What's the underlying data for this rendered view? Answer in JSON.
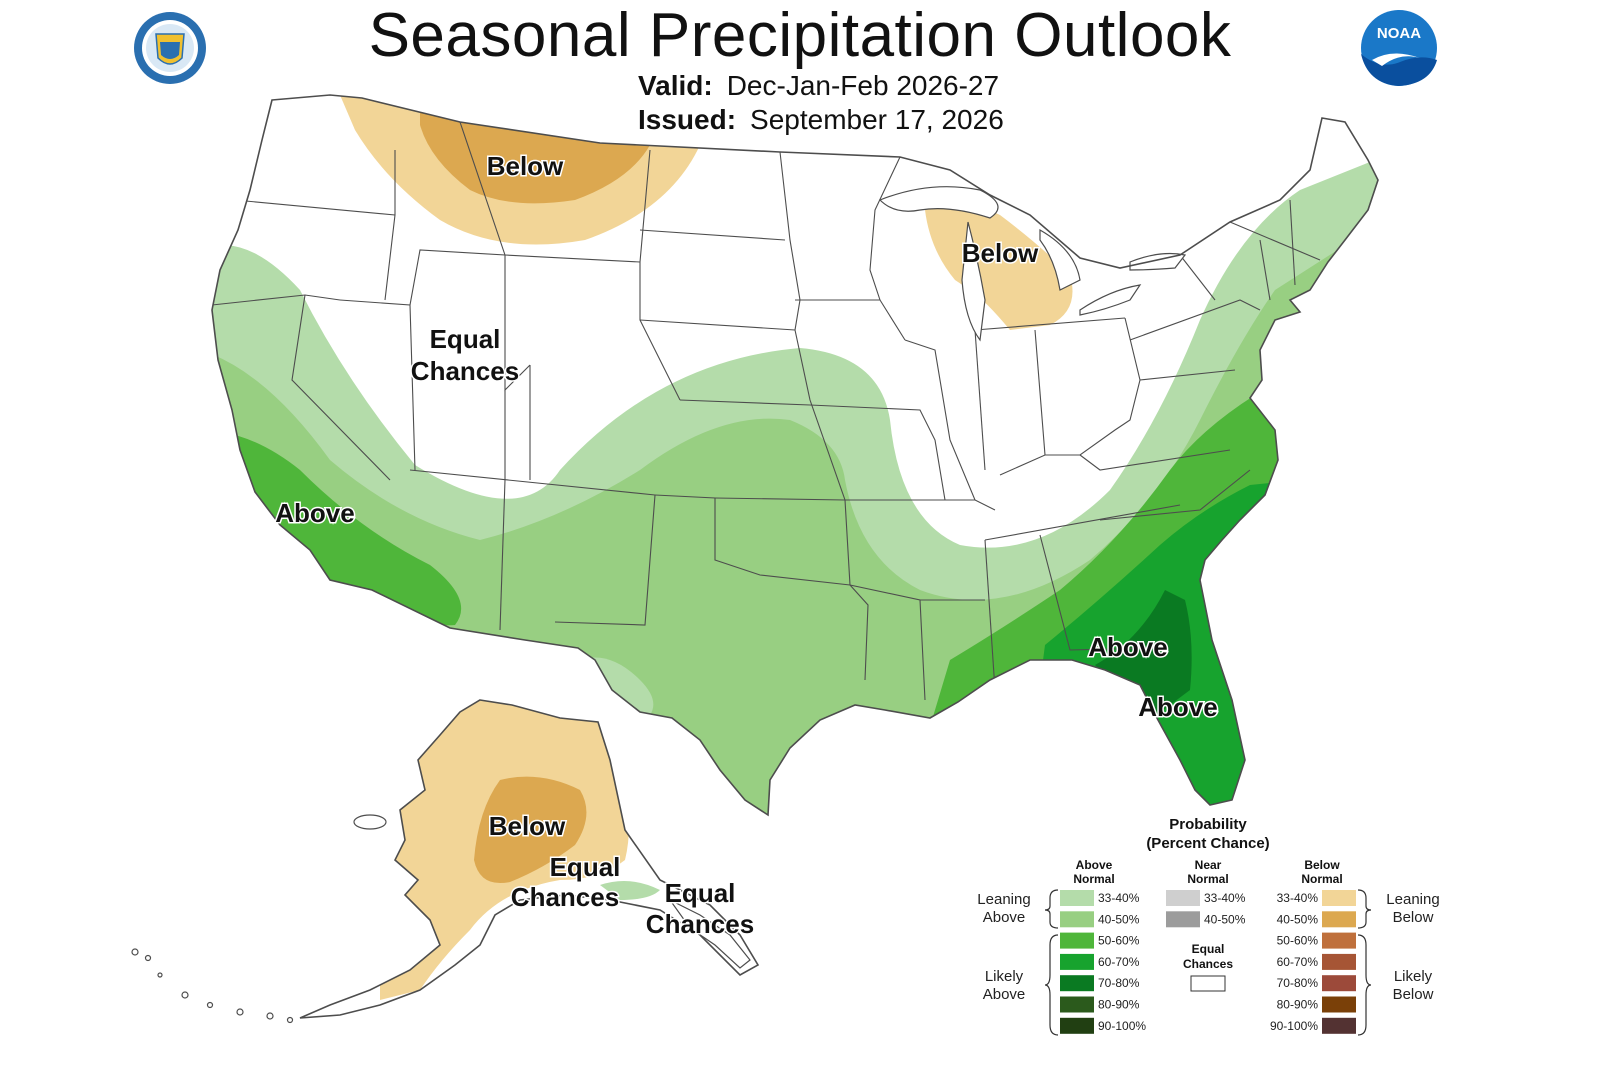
{
  "header": {
    "title": "Seasonal Precipitation Outlook",
    "valid_label": "Valid:",
    "valid_value": "Dec-Jan-Feb 2026-27",
    "issued_label": "Issued:",
    "issued_value": "September 17, 2026"
  },
  "logos": {
    "left": "department-of-commerce-seal",
    "right": "noaa-logo",
    "right_text": "NOAA"
  },
  "map_labels": {
    "northern_plains": "Below",
    "michigan": "Below",
    "west_equal_1": "Equal",
    "west_equal_2": "Chances",
    "california": "Above",
    "southeast": "Above",
    "florida": "Above",
    "alaska": "Below",
    "alaska_equal_1": "Equal",
    "alaska_equal_2": "Chances",
    "panhandle_equal_1": "Equal",
    "panhandle_equal_2": "Chances"
  },
  "colors": {
    "above_33_40": "#b4dcaa",
    "above_40_50": "#98cf82",
    "above_50_60": "#4fb63a",
    "above_60_70": "#17a32e",
    "above_70_80": "#0a7a22",
    "above_80_90": "#2b5a1c",
    "above_90_100": "#213f12",
    "near_33_40": "#cfcfcf",
    "near_40_50": "#9c9c9c",
    "below_33_40": "#f2d597",
    "below_40_50": "#dca850",
    "below_50_60": "#bf703c",
    "below_60_70": "#a65535",
    "below_70_80": "#9c4a3a",
    "below_80_90": "#7a4008",
    "below_90_100": "#533232"
  },
  "legend": {
    "title1": "Probability",
    "title2": "(Percent Chance)",
    "above_header1": "Above",
    "above_header2": "Normal",
    "near_header1": "Near",
    "near_header2": "Normal",
    "below_header1": "Below",
    "below_header2": "Normal",
    "leaning_above1": "Leaning",
    "leaning_above2": "Above",
    "likely_above1": "Likely",
    "likely_above2": "Above",
    "leaning_below1": "Leaning",
    "leaning_below2": "Below",
    "likely_below1": "Likely",
    "likely_below2": "Below",
    "equal1": "Equal",
    "equal2": "Chances",
    "above_items": [
      {
        "label": "33-40%",
        "color": "#b4dcaa"
      },
      {
        "label": "40-50%",
        "color": "#98cf82"
      },
      {
        "label": "50-60%",
        "color": "#4fb63a"
      },
      {
        "label": "60-70%",
        "color": "#17a32e"
      },
      {
        "label": "70-80%",
        "color": "#0a7a22"
      },
      {
        "label": "80-90%",
        "color": "#2b5a1c"
      },
      {
        "label": "90-100%",
        "color": "#213f12"
      }
    ],
    "near_items": [
      {
        "label": "33-40%",
        "color": "#cfcfcf"
      },
      {
        "label": "40-50%",
        "color": "#9c9c9c"
      }
    ],
    "below_items": [
      {
        "label": "33-40%",
        "color": "#f2d597"
      },
      {
        "label": "40-50%",
        "color": "#dca850"
      },
      {
        "label": "50-60%",
        "color": "#bf703c"
      },
      {
        "label": "60-70%",
        "color": "#a65535"
      },
      {
        "label": "70-80%",
        "color": "#9c4a3a"
      },
      {
        "label": "80-90%",
        "color": "#7a4008"
      },
      {
        "label": "90-100%",
        "color": "#533232"
      }
    ]
  }
}
